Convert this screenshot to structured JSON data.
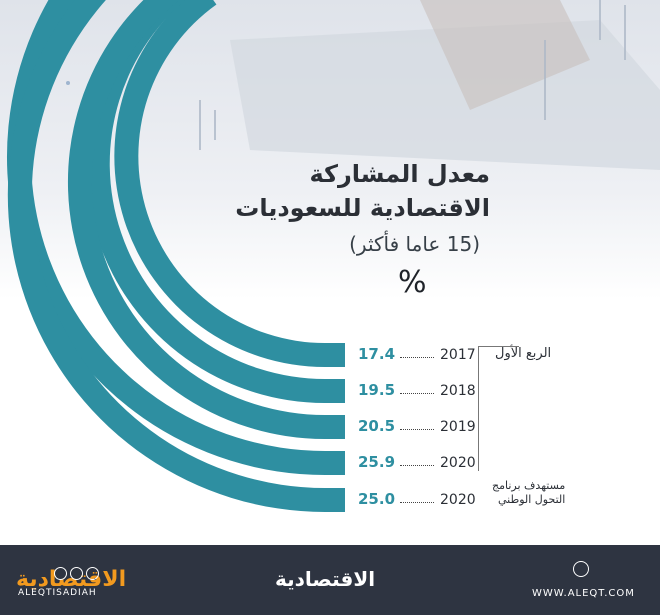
{
  "title": {
    "line1": "معدل المشاركة",
    "line2": "الاقتصادية للسعوديات",
    "line3": "(15 عاما  فأكثر)",
    "unit": "%"
  },
  "row_label": "الربع الأول",
  "target_label": {
    "line1": "مستهدف برنامج",
    "line2": "التحول الوطني"
  },
  "chart_data": {
    "type": "bar",
    "title": "معدل المشاركة الاقتصادية للسعوديات (15 عاما فأكثر) %",
    "categories": [
      "2017",
      "2018",
      "2019",
      "2020",
      "2020"
    ],
    "values": [
      17.4,
      19.5,
      20.5,
      25.9,
      25.0
    ],
    "labels": [
      "17.4",
      "19.5",
      "20.5",
      "25.9",
      "25.0"
    ],
    "notes": [
      "الربع الأول",
      "",
      "",
      "",
      "مستهدف برنامج التحول الوطني"
    ],
    "bar_color": "#2e8fa1"
  },
  "footer": {
    "brand": "الاقتصادية",
    "url": "WWW.ALEQT.COM",
    "handle": "ALEQTISADIAH",
    "background": "#2e3441"
  }
}
